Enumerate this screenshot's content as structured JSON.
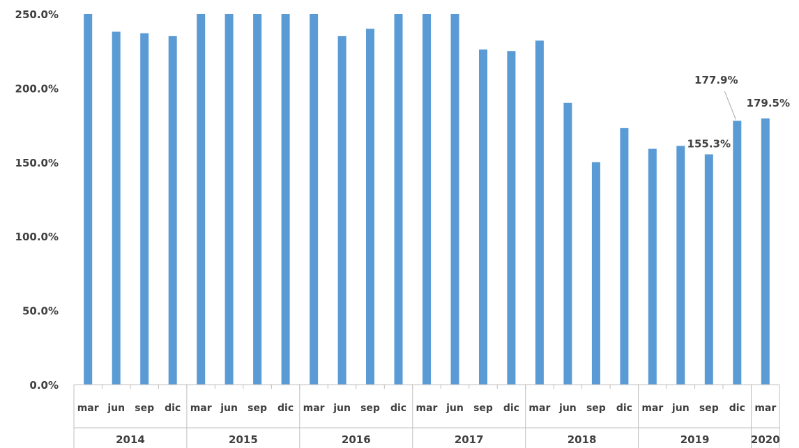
{
  "chart_data": {
    "type": "bar",
    "title": "",
    "xlabel": "",
    "ylabel": "",
    "ylim": [
      0,
      250
    ],
    "y_tick_values": [
      0,
      50,
      100,
      150,
      200,
      250
    ],
    "y_tick_labels": [
      "0.0%",
      "50.0%",
      "100.0%",
      "150.0%",
      "200.0%",
      "250.0%"
    ],
    "bar_color": "#5b9bd5",
    "grid": false,
    "legend": "none",
    "categories": [
      "mar",
      "jun",
      "sep",
      "dic",
      "mar",
      "jun",
      "sep",
      "dic",
      "mar",
      "jun",
      "sep",
      "dic",
      "mar",
      "jun",
      "sep",
      "dic",
      "mar",
      "jun",
      "sep",
      "dic",
      "mar",
      "jun",
      "sep",
      "dic",
      "mar"
    ],
    "years": [
      {
        "label": "2014",
        "count": 4
      },
      {
        "label": "2015",
        "count": 4
      },
      {
        "label": "2016",
        "count": 4
      },
      {
        "label": "2017",
        "count": 4
      },
      {
        "label": "2018",
        "count": 4
      },
      {
        "label": "2019",
        "count": 4
      },
      {
        "label": "2020",
        "count": 1
      }
    ],
    "values": [
      250,
      238,
      237,
      235,
      250,
      250,
      250,
      250,
      250,
      235,
      240,
      250,
      250,
      250,
      226,
      225,
      232,
      190,
      150,
      173,
      159,
      161,
      155.3,
      177.9,
      179.5
    ],
    "data_labels": [
      {
        "index": 22,
        "text": "155.3%"
      },
      {
        "index": 23,
        "text": "177.9%"
      },
      {
        "index": 24,
        "text": "179.5%"
      }
    ]
  }
}
